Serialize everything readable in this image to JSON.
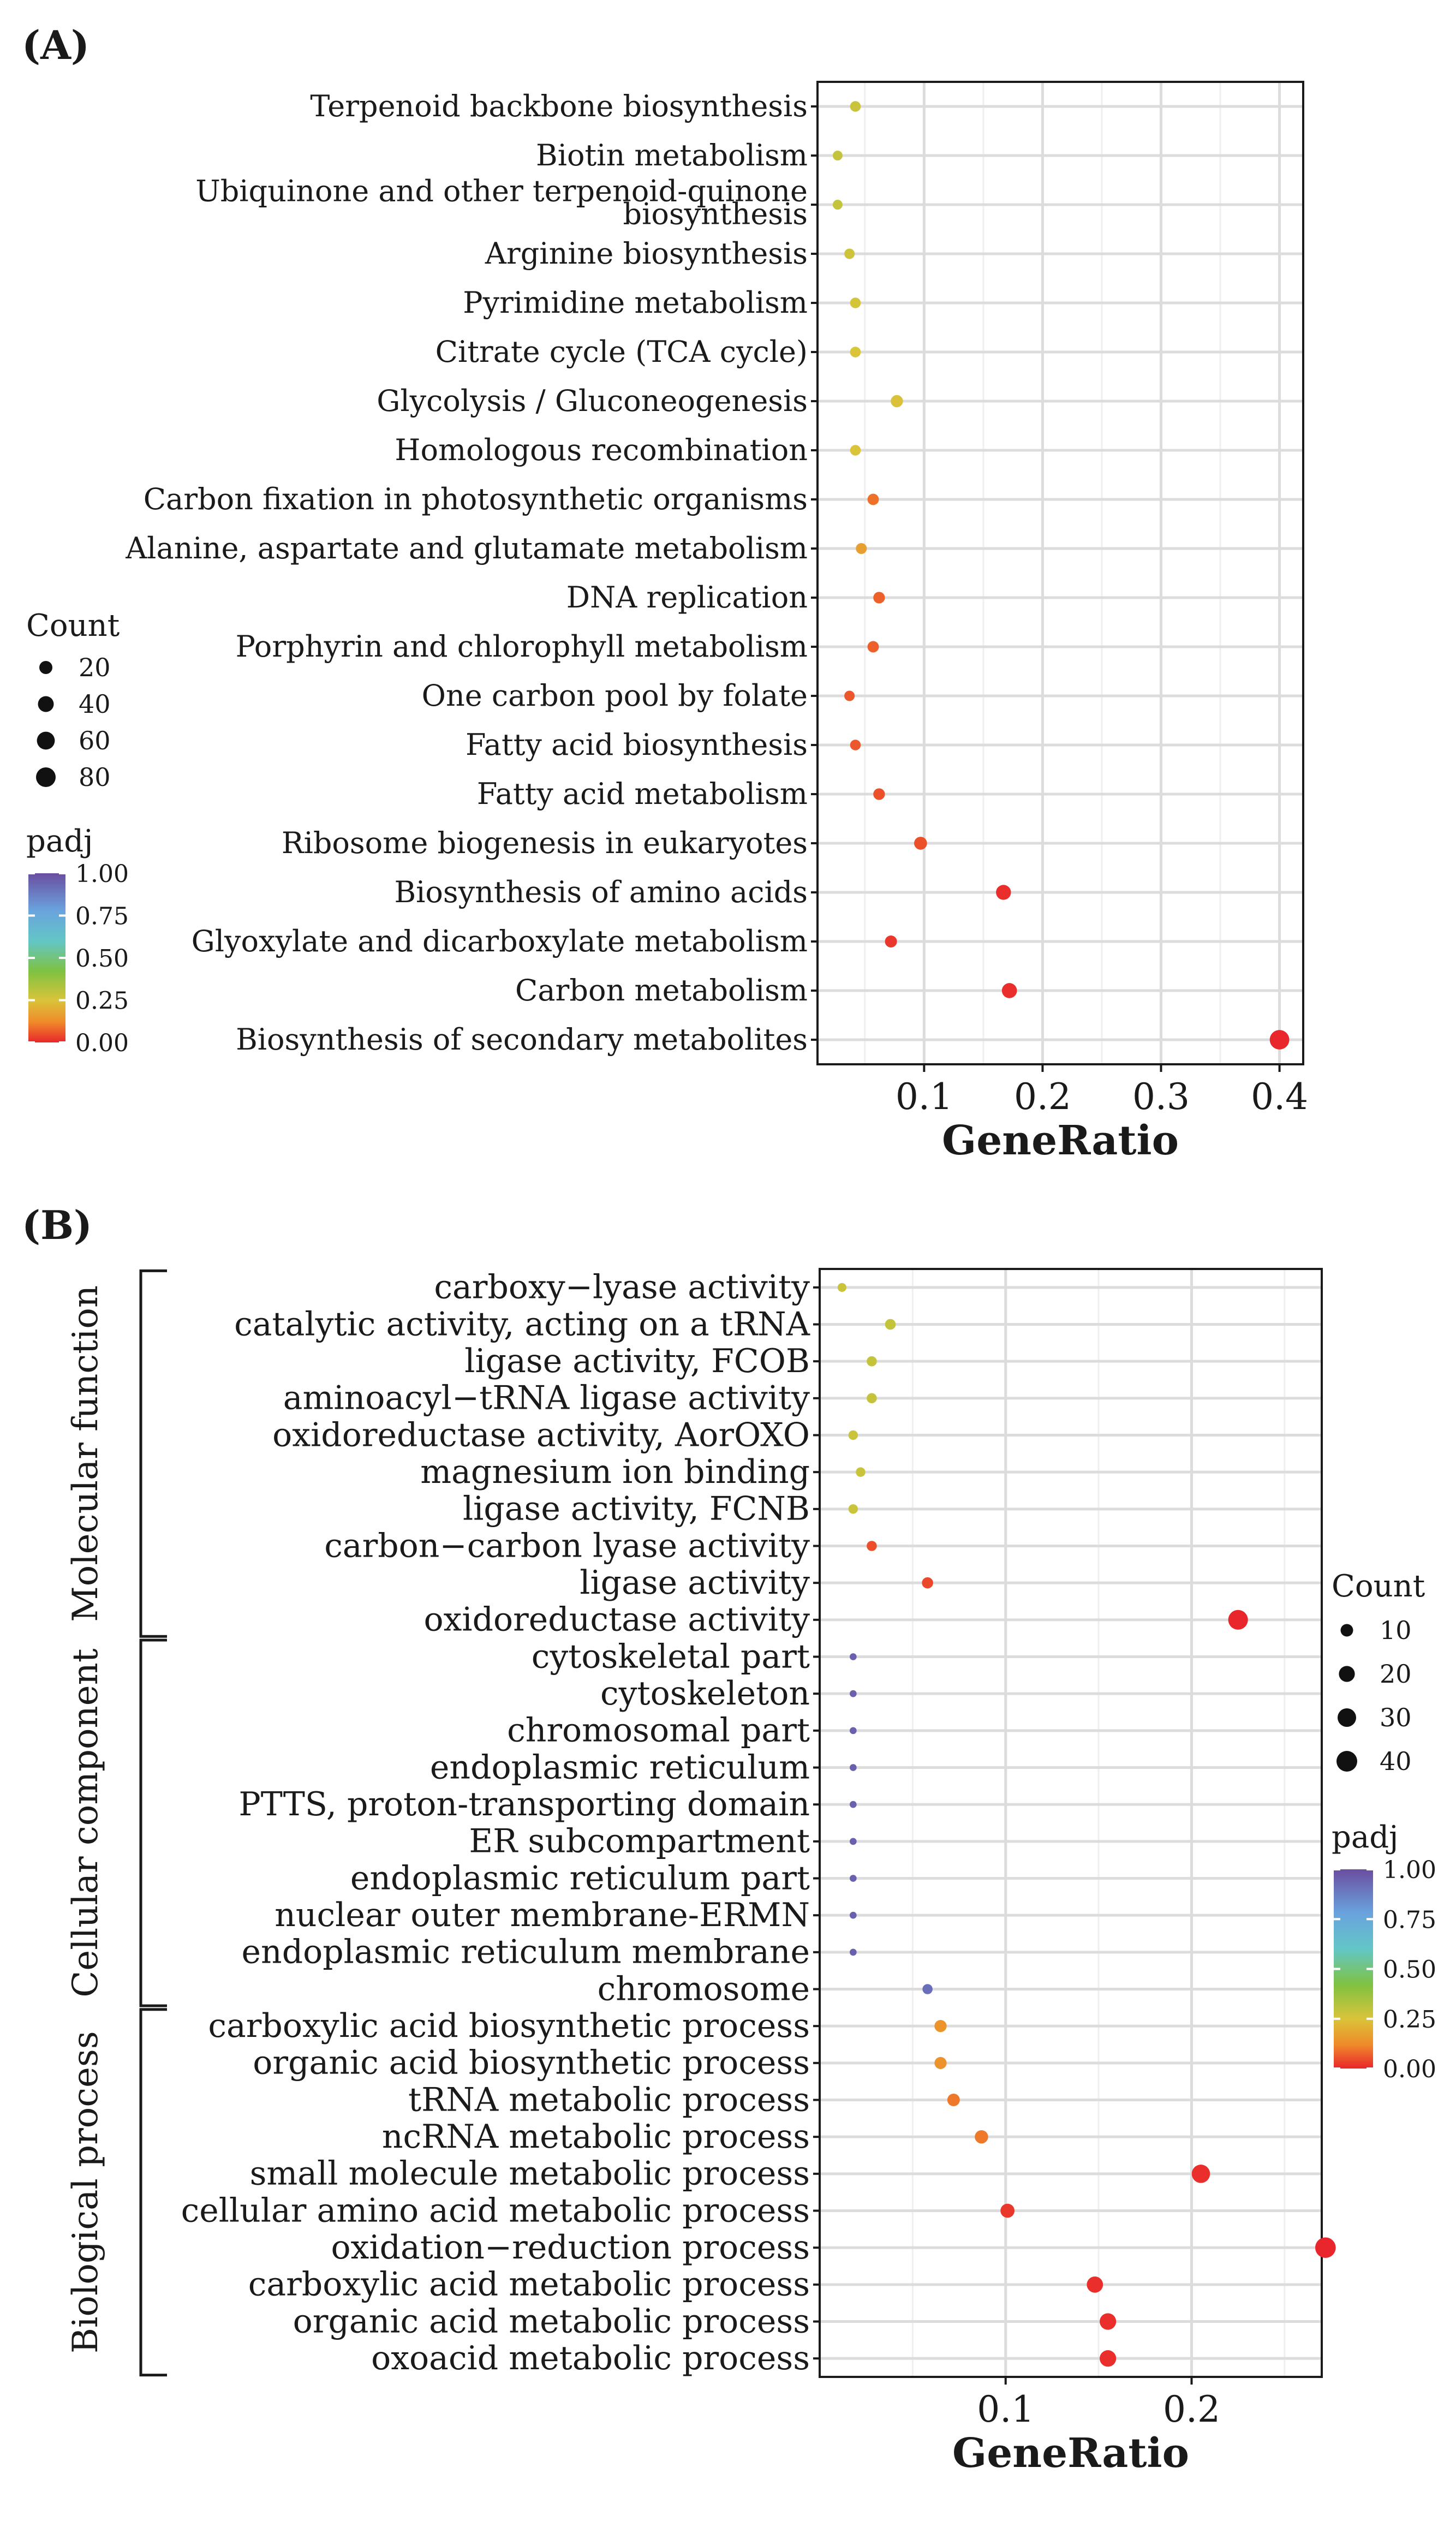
{
  "chart_data": [
    {
      "type": "scatter",
      "panel_label": "(A)",
      "xlabel": "GeneRatio",
      "xlim": [
        0.01,
        0.42
      ],
      "x_ticks": [
        0.1,
        0.2,
        0.3,
        0.4
      ],
      "x_tick_labels": [
        "0.1",
        "0.2",
        "0.3",
        "0.4"
      ],
      "grid": true,
      "legend_position": "left",
      "categories": [
        "Terpenoid backbone biosynthesis",
        "Biotin metabolism",
        "Ubiquinone and other terpenoid-quinone biosynthesis",
        "Arginine biosynthesis",
        "Pyrimidine metabolism",
        "Citrate cycle (TCA cycle)",
        "Glycolysis / Gluconeogenesis",
        "Homologous recombination",
        "Carbon fixation in photosynthetic organisms",
        "Alanine, aspartate and glutamate metabolism",
        "DNA replication",
        "Porphyrin and chlorophyll metabolism",
        "One carbon pool by folate",
        "Fatty acid biosynthesis",
        "Fatty acid metabolism",
        "Ribosome biogenesis in eukaryotes",
        "Biosynthesis of amino acids",
        "Glyoxylate and dicarboxylate metabolism",
        "Carbon metabolism",
        "Biosynthesis of secondary metabolites"
      ],
      "label_lines": [
        [
          "Terpenoid backbone biosynthesis"
        ],
        [
          "Biotin metabolism"
        ],
        [
          "Ubiquinone and other terpenoid-quinone",
          "biosynthesis"
        ],
        [
          "Arginine biosynthesis"
        ],
        [
          "Pyrimidine metabolism"
        ],
        [
          "Citrate cycle (TCA cycle)"
        ],
        [
          "Glycolysis / Gluconeogenesis"
        ],
        [
          "Homologous recombination"
        ],
        [
          "Carbon fixation in photosynthetic organisms"
        ],
        [
          "Alanine, aspartate and glutamate metabolism"
        ],
        [
          "DNA replication"
        ],
        [
          "Porphyrin and chlorophyll metabolism"
        ],
        [
          "One carbon pool by folate"
        ],
        [
          "Fatty acid biosynthesis"
        ],
        [
          "Fatty acid metabolism"
        ],
        [
          "Ribosome biogenesis in eukaryotes"
        ],
        [
          "Biosynthesis of amino acids"
        ],
        [
          "Glyoxylate and dicarboxylate metabolism"
        ],
        [
          "Carbon metabolism"
        ],
        [
          "Biosynthesis of secondary metabolites"
        ]
      ],
      "gene_ratio": [
        0.042,
        0.027,
        0.027,
        0.037,
        0.042,
        0.042,
        0.077,
        0.042,
        0.057,
        0.047,
        0.062,
        0.057,
        0.037,
        0.042,
        0.062,
        0.097,
        0.167,
        0.072,
        0.172,
        0.4
      ],
      "count": [
        8,
        5,
        5,
        7,
        8,
        8,
        15,
        8,
        11,
        9,
        12,
        11,
        7,
        8,
        12,
        19,
        33,
        14,
        34,
        79
      ],
      "padj": [
        0.28,
        0.29,
        0.29,
        0.27,
        0.26,
        0.25,
        0.24,
        0.25,
        0.09,
        0.17,
        0.07,
        0.07,
        0.06,
        0.06,
        0.05,
        0.05,
        0.01,
        0.02,
        0.01,
        0.0
      ],
      "size_legend": {
        "title": "Count",
        "values": [
          20,
          40,
          60,
          80
        ],
        "labels": [
          "20",
          "40",
          "60",
          "80"
        ]
      },
      "color_legend": {
        "title": "padj",
        "ticks": [
          1.0,
          0.75,
          0.5,
          0.25,
          0.0
        ],
        "tick_labels": [
          "1.00",
          "0.75",
          "0.50",
          "0.25",
          "0.00"
        ]
      }
    },
    {
      "type": "scatter",
      "panel_label": "(B)",
      "xlabel": "GeneRatio",
      "xlim": [
        0.0,
        0.27
      ],
      "x_ticks": [
        0.1,
        0.2
      ],
      "x_tick_labels": [
        "0.1",
        "0.2"
      ],
      "grid": true,
      "legend_position": "right",
      "groups": [
        {
          "name": "Molecular function",
          "start": 0,
          "end": 9
        },
        {
          "name": "Cellular component",
          "start": 10,
          "end": 19
        },
        {
          "name": "Biological process",
          "start": 20,
          "end": 29
        }
      ],
      "categories": [
        "carboxy−lyase activity",
        "catalytic activity, acting on a tRNA",
        "ligase activity, FCOB",
        "aminoacyl−tRNA ligase activity",
        "oxidoreductase activity,  AorOXO",
        "magnesium ion binding",
        "ligase activity, FCNB",
        "carbon−carbon lyase activity",
        "ligase activity",
        "oxidoreductase activity",
        "cytoskeletal part",
        "cytoskeleton",
        "chromosomal part",
        "endoplasmic reticulum",
        "PTTS, proton-transporting domain",
        "ER subcompartment",
        "endoplasmic reticulum part",
        "nuclear outer membrane-ERMN",
        "endoplasmic reticulum membrane",
        "chromosome",
        "carboxylic acid biosynthetic process",
        "organic acid biosynthetic process",
        "tRNA metabolic process",
        "ncRNA metabolic process",
        "small molecule metabolic process",
        "cellular amino acid metabolic process",
        "oxidation−reduction process",
        "carboxylic acid metabolic process",
        "organic acid metabolic process",
        "oxoacid metabolic process"
      ],
      "gene_ratio": [
        0.012,
        0.038,
        0.028,
        0.028,
        0.018,
        0.022,
        0.018,
        0.028,
        0.058,
        0.225,
        0.018,
        0.018,
        0.018,
        0.018,
        0.018,
        0.018,
        0.018,
        0.018,
        0.018,
        0.058,
        0.065,
        0.065,
        0.072,
        0.087,
        0.205,
        0.101,
        0.272,
        0.148,
        0.155,
        0.155
      ],
      "count": [
        3,
        6,
        5,
        5,
        4,
        4,
        4,
        5,
        7,
        35,
        1,
        1,
        1,
        1,
        1,
        1,
        1,
        1,
        1,
        5,
        9,
        9,
        10,
        12,
        29,
        14,
        39,
        21,
        22,
        22
      ],
      "padj": [
        0.28,
        0.29,
        0.29,
        0.29,
        0.28,
        0.28,
        0.28,
        0.05,
        0.04,
        0.0,
        0.95,
        0.95,
        0.95,
        0.95,
        0.95,
        0.95,
        0.95,
        0.95,
        0.95,
        0.92,
        0.14,
        0.14,
        0.1,
        0.1,
        0.01,
        0.02,
        0.0,
        0.01,
        0.01,
        0.01
      ],
      "size_legend": {
        "title": "Count",
        "values": [
          10,
          20,
          30,
          40
        ],
        "labels": [
          "10",
          "20",
          "30",
          "40"
        ]
      },
      "color_legend": {
        "title": "padj",
        "ticks": [
          1.0,
          0.75,
          0.5,
          0.25,
          0.0
        ],
        "tick_labels": [
          "1.00",
          "0.75",
          "0.50",
          "0.25",
          "0.00"
        ]
      }
    }
  ],
  "colors": {
    "scale": [
      "#e8262b",
      "#f08a2a",
      "#d9c43a",
      "#7fc241",
      "#63c6c6",
      "#6aa3de",
      "#6a4ea0"
    ],
    "grid_major": "#dcdcdc",
    "grid_minor": "#efefef",
    "axis": "#1a1a1a"
  }
}
